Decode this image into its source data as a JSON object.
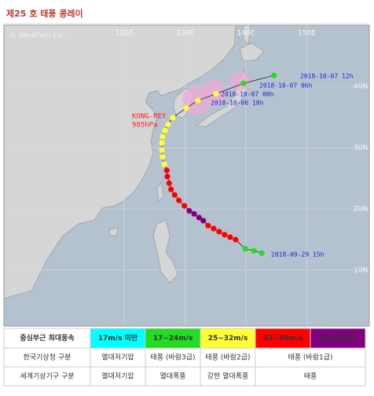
{
  "header": {
    "title": "제25 호 태풍 콩레이",
    "copyright": "© Weatheri Inc."
  },
  "map": {
    "lon_ticks": [
      {
        "value": 120,
        "label": "120E"
      },
      {
        "value": 130,
        "label": "130E"
      },
      {
        "value": 140,
        "label": "140E"
      },
      {
        "value": 150,
        "label": "150E"
      }
    ],
    "lat_ticks": [
      {
        "value": 40,
        "label": "40N"
      },
      {
        "value": 30,
        "label": "30N"
      },
      {
        "value": 20,
        "label": "20N"
      },
      {
        "value": 10,
        "label": "10N"
      }
    ],
    "storm_name": "KONG-REY",
    "pressure": "985hPa",
    "track": {
      "lon": [
        142.6,
        141.3,
        139.9,
        138.3,
        137.4,
        136.5,
        135.6,
        134.7,
        133.8,
        133.0,
        132.3,
        131.5,
        130.7,
        129.9,
        129.0,
        128.3,
        127.7,
        127.4,
        127.1,
        127.0,
        126.6,
        126.3,
        126.2,
        126.2,
        126.3,
        126.7,
        127.2,
        128.0,
        130.2,
        132.1,
        135.1,
        139.6,
        144.6
      ],
      "lat": [
        12.8,
        13.2,
        13.5,
        15.0,
        15.4,
        15.8,
        16.3,
        16.8,
        17.3,
        18.1,
        18.6,
        19.2,
        19.7,
        20.5,
        21.4,
        22.3,
        23.2,
        24.2,
        25.3,
        26.3,
        27.3,
        28.5,
        29.6,
        30.8,
        31.8,
        32.8,
        33.8,
        34.9,
        36.5,
        37.7,
        38.8,
        40.5,
        41.8
      ],
      "colors": [
        "#22dd22",
        "#22dd22",
        "#22dd22",
        "#ff0000",
        "#ff0000",
        "#ff0000",
        "#ff0000",
        "#ff0000",
        "#ff0000",
        "#800080",
        "#800080",
        "#800080",
        "#800080",
        "#ff0000",
        "#ff0000",
        "#ff0000",
        "#ff0000",
        "#ff0000",
        "#ff0000",
        "#ff0000",
        "#ffff33",
        "#ffff33",
        "#ffff33",
        "#ffff33",
        "#ffff33",
        "#ffff33",
        "#ffff33",
        "#ffff33",
        "#ffff33",
        "#ffff33",
        "#ffff33",
        "#22dd22",
        "#22dd22"
      ]
    },
    "time_labels": [
      "2018-10-07 12h",
      "2018-10-07 06h",
      "2018-10-07 00h",
      "2018-10-06 18h",
      "2018-09-29 15h"
    ]
  },
  "legend": {
    "header": "중심부근 최대풍속",
    "classes": [
      {
        "label": "17m/s 미만",
        "color": "#00ffff"
      },
      {
        "label": "17~24m/s",
        "color": "#22dd22"
      },
      {
        "label": "25~32m/s",
        "color": "#ffff33"
      },
      {
        "label": "33~50m/s",
        "color": "#ff0000"
      },
      {
        "label": "5lm/s이상",
        "color": "#800080"
      }
    ],
    "rows": [
      {
        "label": "한국기상청 구분",
        "cells": [
          "열대저기압",
          "태풍 (바람3급)",
          "태풍 (바람2급)",
          "태풍 (바람1급)"
        ]
      },
      {
        "label": "세계기상기구 구분",
        "cells": [
          "열대저기압",
          "열대폭풍",
          "강한 열대폭풍",
          "태풍"
        ]
      }
    ]
  }
}
